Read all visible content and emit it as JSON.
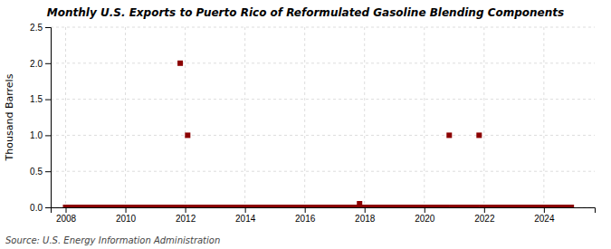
{
  "chart_data": {
    "type": "scatter",
    "title": "Monthly U.S. Exports to Puerto Rico of Reformulated Gasoline Blending Components",
    "ylabel": "Thousand Barrels",
    "source": "Source: U.S. Energy Information Administration",
    "color": "#8b0000",
    "marker": "square",
    "grid": true,
    "xlim": [
      2007.5,
      2025.7
    ],
    "xticks": [
      2008,
      2010,
      2012,
      2014,
      2016,
      2018,
      2020,
      2022,
      2024
    ],
    "ylim": [
      0,
      2.5
    ],
    "yticks": [
      {
        "value": 0.0,
        "label": "0.0"
      },
      0.5,
      {
        "value": 1.0,
        "label": "1.0"
      },
      1.5,
      {
        "value": 2.0,
        "label": "2.0"
      },
      2.5
    ],
    "x": [
      2008.0,
      2008.083,
      2008.167,
      2008.25,
      2008.333,
      2008.417,
      2008.5,
      2008.583,
      2008.667,
      2008.75,
      2008.833,
      2008.917,
      2009.0,
      2009.083,
      2009.167,
      2009.25,
      2009.333,
      2009.417,
      2009.5,
      2009.583,
      2009.667,
      2009.75,
      2009.833,
      2009.917,
      2010.0,
      2010.083,
      2010.167,
      2010.25,
      2010.333,
      2010.417,
      2010.5,
      2010.583,
      2010.667,
      2010.75,
      2010.833,
      2010.917,
      2011.0,
      2011.083,
      2011.167,
      2011.25,
      2011.333,
      2011.417,
      2011.5,
      2011.583,
      2011.667,
      2011.75,
      2011.833,
      2011.917,
      2012.0,
      2012.083,
      2012.167,
      2012.25,
      2012.333,
      2012.417,
      2012.5,
      2012.583,
      2012.667,
      2012.75,
      2012.833,
      2012.917,
      2013.0,
      2013.083,
      2013.167,
      2013.25,
      2013.333,
      2013.417,
      2013.5,
      2013.583,
      2013.667,
      2013.75,
      2013.833,
      2013.917,
      2014.0,
      2014.083,
      2014.167,
      2014.25,
      2014.333,
      2014.417,
      2014.5,
      2014.583,
      2014.667,
      2014.75,
      2014.833,
      2014.917,
      2015.0,
      2015.083,
      2015.167,
      2015.25,
      2015.333,
      2015.417,
      2015.5,
      2015.583,
      2015.667,
      2015.75,
      2015.833,
      2015.917,
      2016.0,
      2016.083,
      2016.167,
      2016.25,
      2016.333,
      2016.417,
      2016.5,
      2016.583,
      2016.667,
      2016.75,
      2016.833,
      2016.917,
      2017.0,
      2017.083,
      2017.167,
      2017.25,
      2017.333,
      2017.417,
      2017.5,
      2017.583,
      2017.667,
      2017.75,
      2017.833,
      2017.917,
      2018.0,
      2018.083,
      2018.167,
      2018.25,
      2018.333,
      2018.417,
      2018.5,
      2018.583,
      2018.667,
      2018.75,
      2018.833,
      2018.917,
      2019.0,
      2019.083,
      2019.167,
      2019.25,
      2019.333,
      2019.417,
      2019.5,
      2019.583,
      2019.667,
      2019.75,
      2019.833,
      2019.917,
      2020.0,
      2020.083,
      2020.167,
      2020.25,
      2020.333,
      2020.417,
      2020.5,
      2020.583,
      2020.667,
      2020.75,
      2020.833,
      2020.917,
      2021.0,
      2021.083,
      2021.167,
      2021.25,
      2021.333,
      2021.417,
      2021.5,
      2021.583,
      2021.667,
      2021.75,
      2021.833,
      2021.917,
      2022.0,
      2022.083,
      2022.167,
      2022.25,
      2022.333,
      2022.417,
      2022.5,
      2022.583,
      2022.667,
      2022.75,
      2022.833,
      2022.917,
      2023.0,
      2023.083,
      2023.167,
      2023.25,
      2023.333,
      2023.417,
      2023.5,
      2023.583,
      2023.667,
      2023.75,
      2023.833,
      2023.917,
      2024.0,
      2024.083,
      2024.167,
      2024.25,
      2024.333,
      2024.417,
      2024.5,
      2024.583,
      2024.667,
      2024.75,
      2024.833,
      2024.917
    ],
    "values": [
      0,
      0,
      0,
      0,
      0,
      0,
      0,
      0,
      0,
      0,
      0,
      0,
      0,
      0,
      0,
      0,
      0,
      0,
      0,
      0,
      0,
      0,
      0,
      0,
      0,
      0,
      0,
      0,
      0,
      0,
      0,
      0,
      0,
      0,
      0,
      0,
      0,
      0,
      0,
      0,
      0,
      0,
      0,
      0,
      0,
      0,
      2.0,
      0,
      0,
      1.0,
      0,
      0,
      0,
      0,
      0,
      0,
      0,
      0,
      0,
      0,
      0,
      0,
      0,
      0,
      0,
      0,
      0,
      0,
      0,
      0,
      0,
      0,
      0,
      0,
      0,
      0,
      0,
      0,
      0,
      0,
      0,
      0,
      0,
      0,
      0,
      0,
      0,
      0,
      0,
      0,
      0,
      0,
      0,
      0,
      0,
      0,
      0,
      0,
      0,
      0,
      0,
      0,
      0,
      0,
      0,
      0,
      0,
      0,
      0,
      0,
      0,
      0,
      0,
      0,
      0,
      0,
      0,
      0,
      0.05,
      0,
      0,
      0,
      0,
      0,
      0,
      0,
      0,
      0,
      0,
      0,
      0,
      0,
      0,
      0,
      0,
      0,
      0,
      0,
      0,
      0,
      0,
      0,
      0,
      0,
      0,
      0,
      0,
      0,
      0,
      0,
      0,
      0,
      0,
      0,
      1.0,
      0,
      0,
      0,
      0,
      0,
      0,
      0,
      0,
      0,
      0,
      0,
      1.0,
      0,
      0,
      0,
      0,
      0,
      0,
      0,
      0,
      0,
      0,
      0,
      0,
      0,
      0,
      0,
      0,
      0,
      0,
      0,
      0,
      0,
      0,
      0,
      0,
      0,
      0,
      0,
      0,
      0,
      0,
      0,
      0,
      0,
      0,
      0,
      0,
      0
    ]
  }
}
